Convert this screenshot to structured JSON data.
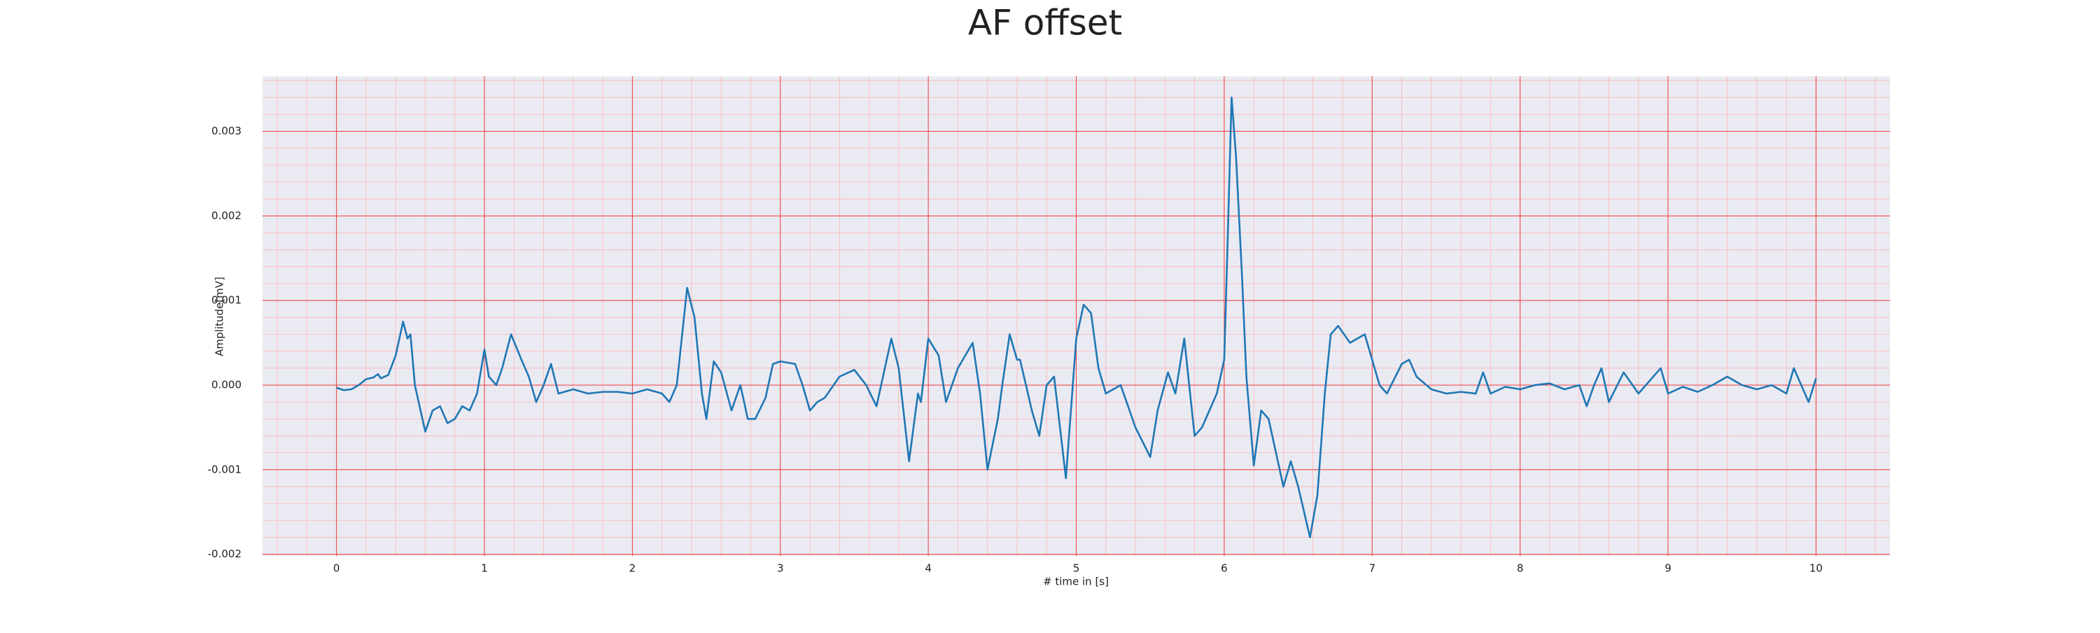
{
  "chart_data": {
    "type": "line",
    "title": "AF offset",
    "x_label": "# time in [s]",
    "y_label": "Amplitude[mV]",
    "x": [
      0,
      0.05,
      0.1,
      0.15,
      0.2,
      0.25,
      0.28,
      0.3,
      0.35,
      0.4,
      0.45,
      0.48,
      0.5,
      0.53,
      0.6,
      0.65,
      0.7,
      0.75,
      0.8,
      0.85,
      0.9,
      0.95,
      1.0,
      1.03,
      1.08,
      1.12,
      1.18,
      1.25,
      1.3,
      1.35,
      1.4,
      1.45,
      1.5,
      1.6,
      1.7,
      1.8,
      1.9,
      2.0,
      2.1,
      2.2,
      2.25,
      2.3,
      2.37,
      2.42,
      2.47,
      2.5,
      2.55,
      2.6,
      2.67,
      2.73,
      2.78,
      2.83,
      2.9,
      2.95,
      3.0,
      3.1,
      3.15,
      3.2,
      3.25,
      3.3,
      3.4,
      3.5,
      3.58,
      3.65,
      3.75,
      3.8,
      3.87,
      3.93,
      3.95,
      4.0,
      4.07,
      4.12,
      4.2,
      4.3,
      4.35,
      4.4,
      4.47,
      4.5,
      4.55,
      4.6,
      4.62,
      4.7,
      4.75,
      4.8,
      4.85,
      4.93,
      5.0,
      5.05,
      5.1,
      5.15,
      5.2,
      5.3,
      5.4,
      5.5,
      5.55,
      5.62,
      5.67,
      5.73,
      5.8,
      5.85,
      5.95,
      6.0,
      6.02,
      6.05,
      6.08,
      6.12,
      6.15,
      6.2,
      6.25,
      6.3,
      6.35,
      6.4,
      6.45,
      6.5,
      6.58,
      6.63,
      6.68,
      6.72,
      6.77,
      6.85,
      6.95,
      7.0,
      7.05,
      7.1,
      7.2,
      7.25,
      7.3,
      7.4,
      7.5,
      7.6,
      7.7,
      7.75,
      7.8,
      7.9,
      8.0,
      8.1,
      8.2,
      8.3,
      8.4,
      8.45,
      8.5,
      8.55,
      8.6,
      8.7,
      8.8,
      8.85,
      8.95,
      9.0,
      9.1,
      9.2,
      9.3,
      9.4,
      9.5,
      9.6,
      9.7,
      9.8,
      9.85,
      9.9,
      9.95,
      10.0
    ],
    "values": [
      -3e-05,
      -6e-05,
      -5e-05,
      0,
      7e-05,
      9e-05,
      0.00013,
      8e-05,
      0.00012,
      0.00035,
      0.00075,
      0.00055,
      0.0006,
      0,
      -0.00055,
      -0.0003,
      -0.00025,
      -0.00045,
      -0.0004,
      -0.00025,
      -0.0003,
      -0.0001,
      0.00042,
      0.0001,
      0,
      0.0002,
      0.0006,
      0.0003,
      0.0001,
      -0.0002,
      0,
      0.00025,
      -0.0001,
      -5e-05,
      -0.0001,
      -8e-05,
      -8e-05,
      -0.0001,
      -5e-05,
      -0.0001,
      -0.0002,
      0,
      0.00115,
      0.0008,
      -0.0001,
      -0.0004,
      0.00028,
      0.00015,
      -0.0003,
      0,
      -0.0004,
      -0.0004,
      -0.00015,
      0.00025,
      0.00028,
      0.00025,
      0,
      -0.0003,
      -0.0002,
      -0.00015,
      0.0001,
      0.00018,
      0,
      -0.00025,
      0.00055,
      0.0002,
      -0.0009,
      -0.0001,
      -0.0002,
      0.00055,
      0.00035,
      -0.0002,
      0.0002,
      0.0005,
      -0.0001,
      -0.001,
      -0.0004,
      0,
      0.0006,
      0.0003,
      0.0003,
      -0.0003,
      -0.0006,
      0,
      0.0001,
      -0.0011,
      0.00055,
      0.00095,
      0.00085,
      0.0002,
      -0.0001,
      0,
      -0.0005,
      -0.00085,
      -0.0003,
      0.00015,
      -0.0001,
      0.00055,
      -0.0006,
      -0.0005,
      -0.0001,
      0.0003,
      0.0015,
      0.0034,
      0.0027,
      0.0013,
      0.0001,
      -0.00095,
      -0.0003,
      -0.0004,
      -0.0008,
      -0.0012,
      -0.0009,
      -0.0012,
      -0.0018,
      -0.0013,
      -0.0001,
      0.0006,
      0.0007,
      0.0005,
      0.0006,
      0.0003,
      0,
      -0.0001,
      0.00025,
      0.0003,
      0.0001,
      -5e-05,
      -0.0001,
      -8e-05,
      -0.0001,
      0.00015,
      -0.0001,
      -2e-05,
      -5e-05,
      0,
      2e-05,
      -5e-05,
      0,
      -0.00025,
      0,
      0.0002,
      -0.0002,
      0.00015,
      -0.0001,
      0,
      0.0002,
      -0.0001,
      -2e-05,
      -8e-05,
      0,
      0.0001,
      0,
      -5e-05,
      0,
      -0.0001,
      0.0002,
      0,
      -0.0002,
      8e-05
    ],
    "color": "#1f77b4",
    "xlim": [
      -0.5,
      10.5
    ],
    "xticks": [
      0,
      1,
      2,
      3,
      4,
      5,
      6,
      7,
      8,
      9,
      10
    ],
    "ylim": [
      -0.00202,
      0.00365
    ],
    "yticks": [
      -0.002,
      -0.001,
      {
        "value": 0,
        "label": "0.000"
      },
      0.001,
      0.002,
      0.003
    ],
    "grid": true
  }
}
